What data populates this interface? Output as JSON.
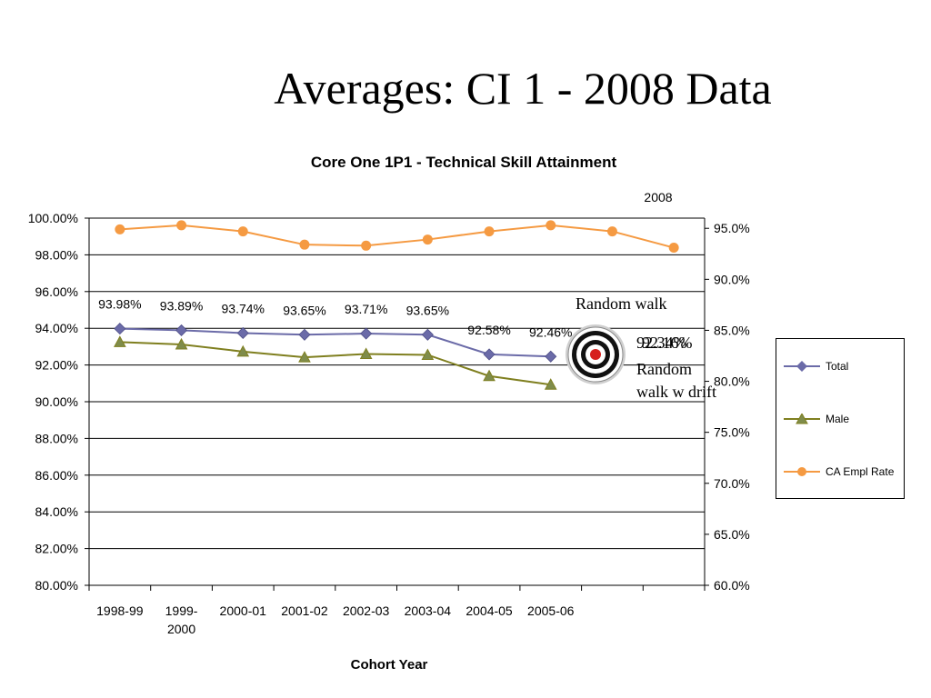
{
  "page": {
    "title": "Averages: CI 1 - 2008 Data"
  },
  "annotations": {
    "random_walk": "Random walk",
    "value_overlap_a": "92.34%",
    "value_overlap_b": "92.16%",
    "random_walk_drift_line1": "Random",
    "random_walk_drift_line2": "walk w drift",
    "target_icon": "target-icon"
  },
  "chart_data": {
    "type": "line",
    "title": "Core One 1P1 - Technical Skill Attainment",
    "xlabel": "Cohort Year",
    "top_label": "2008",
    "categories": [
      "1998-99",
      "1999-2000",
      "2000-01",
      "2001-02",
      "2002-03",
      "2003-04",
      "2004-05",
      "2005-06",
      "",
      ""
    ],
    "y_left": {
      "min": 80,
      "max": 100,
      "step": 2,
      "tick_labels": [
        "80.00%",
        "82.00%",
        "84.00%",
        "86.00%",
        "88.00%",
        "90.00%",
        "92.00%",
        "94.00%",
        "96.00%",
        "98.00%",
        "100.00%"
      ]
    },
    "y_right": {
      "min": 60,
      "max": 96,
      "tick_values": [
        60,
        65,
        70,
        75,
        80,
        85,
        90,
        95
      ],
      "tick_labels": [
        "60.0%",
        "65.0%",
        "70.0%",
        "75.0%",
        "80.0%",
        "85.0%",
        "90.0%",
        "95.0%"
      ]
    },
    "grid": true,
    "legend_position": "right",
    "series": [
      {
        "name": "Total",
        "axis": "left",
        "color": "#6B6BA8",
        "marker": "diamond",
        "values": [
          93.98,
          93.89,
          93.74,
          93.65,
          93.71,
          93.65,
          92.58,
          92.46,
          null,
          null
        ],
        "data_labels": [
          "93.98%",
          "93.89%",
          "93.74%",
          "93.65%",
          "93.71%",
          "93.65%",
          "92.58%",
          "92.46%",
          "",
          ""
        ]
      },
      {
        "name": "Male",
        "axis": "left",
        "color": "#7F7F1F",
        "marker": "triangle",
        "values": [
          93.25,
          93.12,
          92.73,
          92.42,
          92.6,
          92.55,
          91.4,
          90.93,
          null,
          null
        ]
      },
      {
        "name": "CA Empl Rate",
        "axis": "right",
        "color": "#F59A42",
        "marker": "circle",
        "values": [
          94.9,
          95.3,
          94.7,
          93.4,
          93.3,
          93.9,
          94.7,
          95.3,
          94.7,
          93.1
        ]
      }
    ]
  }
}
